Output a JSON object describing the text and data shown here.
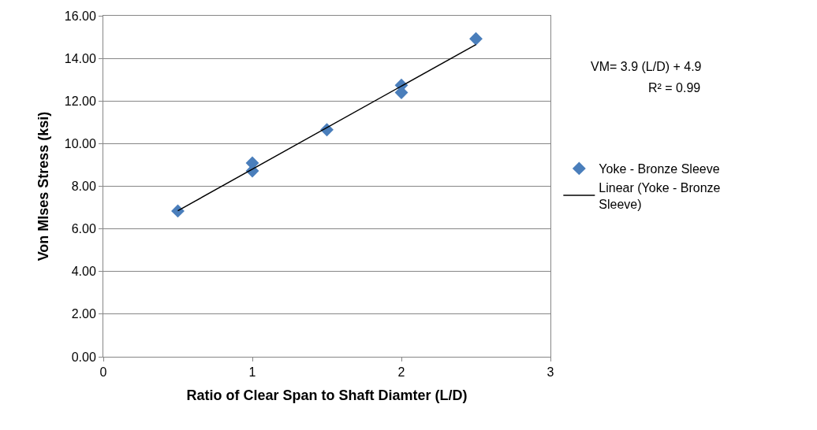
{
  "chart_data": {
    "type": "scatter",
    "xlabel": "Ratio of Clear Span to Shaft Diamter (L/D)",
    "ylabel": "Von MIses Stress (ksi)",
    "series": [
      {
        "name": "Yoke - Bronze Sleeve",
        "color": "#4a7ebb",
        "marker": "diamond",
        "x": [
          0.5,
          1,
          1,
          1.5,
          2,
          2,
          2.5
        ],
        "values": [
          6.84,
          9.09,
          8.72,
          10.65,
          12.74,
          12.4,
          14.92
        ]
      },
      {
        "name": "Linear (Yoke - Bronze Sleeve)",
        "type": "line",
        "color": "#000000",
        "marker": "none",
        "line_style": "solid",
        "x": [
          0.5,
          2.5
        ],
        "values": [
          6.85,
          14.65
        ]
      }
    ],
    "xlim": [
      0,
      3
    ],
    "xticks": [
      0,
      1,
      2,
      3
    ],
    "ylim": [
      0,
      16
    ],
    "yticks": [
      {
        "value": 0,
        "label": "0.00"
      },
      {
        "value": 2,
        "label": "2.00"
      },
      {
        "value": 4,
        "label": "4.00"
      },
      {
        "value": 6,
        "label": "6.00"
      },
      {
        "value": 8,
        "label": "8.00"
      },
      {
        "value": 10,
        "label": "10.00"
      },
      {
        "value": 12,
        "label": "12.00"
      },
      {
        "value": 14,
        "label": "14.00"
      },
      {
        "value": 16,
        "label": "16.00"
      }
    ],
    "grid": "y",
    "legend": "right",
    "annotations": [
      "VM= 3.9 (L/D) + 4.9",
      "R² = 0.99"
    ]
  }
}
